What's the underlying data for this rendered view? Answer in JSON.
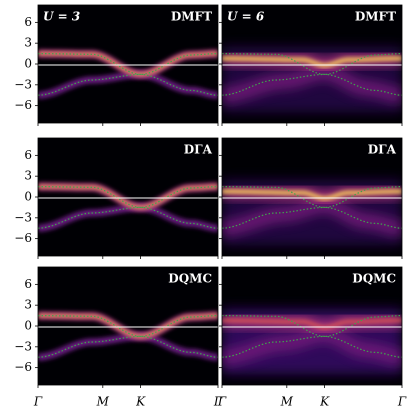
{
  "chart_data": [
    {
      "type": "heatmap",
      "title": "DMFT",
      "annotation": "U = 3",
      "xlim": [
        0,
        1
      ],
      "xticks": [
        0,
        0.36,
        0.57,
        1
      ],
      "ylim": [
        -8.5,
        8.5
      ],
      "yticks": [
        {
          "value": 6,
          "label": "6"
        },
        {
          "value": 3,
          "label": "3"
        },
        {
          "value": 0,
          "label": "0"
        },
        {
          "value": -3,
          "label": "−3"
        },
        {
          "value": -6,
          "label": "−6"
        }
      ]
    },
    {
      "type": "heatmap",
      "title": "DMFT",
      "annotation": "U = 6",
      "xlim": [
        0,
        1
      ],
      "xticks": [
        0,
        0.36,
        0.57,
        1
      ],
      "ylim": [
        -8.5,
        8.5
      ],
      "yticks": [
        6,
        3,
        0,
        -3,
        -6
      ]
    },
    {
      "type": "heatmap",
      "title": "DΓA",
      "xlim": [
        0,
        1
      ],
      "xticks": [
        0,
        0.36,
        0.57,
        1
      ],
      "ylim": [
        -8.5,
        8.5
      ],
      "yticks": [
        {
          "value": 6,
          "label": "6"
        },
        {
          "value": 3,
          "label": "3"
        },
        {
          "value": 0,
          "label": "0"
        },
        {
          "value": -3,
          "label": "−3"
        },
        {
          "value": -6,
          "label": "−6"
        }
      ]
    },
    {
      "type": "heatmap",
      "title": "DΓA",
      "xlim": [
        0,
        1
      ],
      "xticks": [
        0,
        0.36,
        0.57,
        1
      ],
      "ylim": [
        -8.5,
        8.5
      ],
      "yticks": [
        6,
        3,
        0,
        -3,
        -6
      ]
    },
    {
      "type": "heatmap",
      "title": "DQMC",
      "xlim": [
        0,
        1
      ],
      "xticks": [
        {
          "value": 0,
          "label": "Γ"
        },
        {
          "value": 0.36,
          "label": "M"
        },
        {
          "value": 0.57,
          "label": "K"
        },
        {
          "value": 1,
          "label": "Γ"
        }
      ],
      "ylim": [
        -8.5,
        8.5
      ],
      "yticks": [
        {
          "value": 6,
          "label": "6"
        },
        {
          "value": 3,
          "label": "3"
        },
        {
          "value": 0,
          "label": "0"
        },
        {
          "value": -3,
          "label": "−3"
        },
        {
          "value": -6,
          "label": "−6"
        }
      ]
    },
    {
      "type": "heatmap",
      "title": "DQMC",
      "xlim": [
        0,
        1
      ],
      "xticks": [
        {
          "value": 0,
          "label": "Γ"
        },
        {
          "value": 0.36,
          "label": "M"
        },
        {
          "value": 0.57,
          "label": "K"
        },
        {
          "value": 1,
          "label": "Γ"
        }
      ],
      "ylim": [
        -8.5,
        8.5
      ],
      "yticks": [
        6,
        3,
        0,
        -3,
        -6
      ]
    }
  ]
}
